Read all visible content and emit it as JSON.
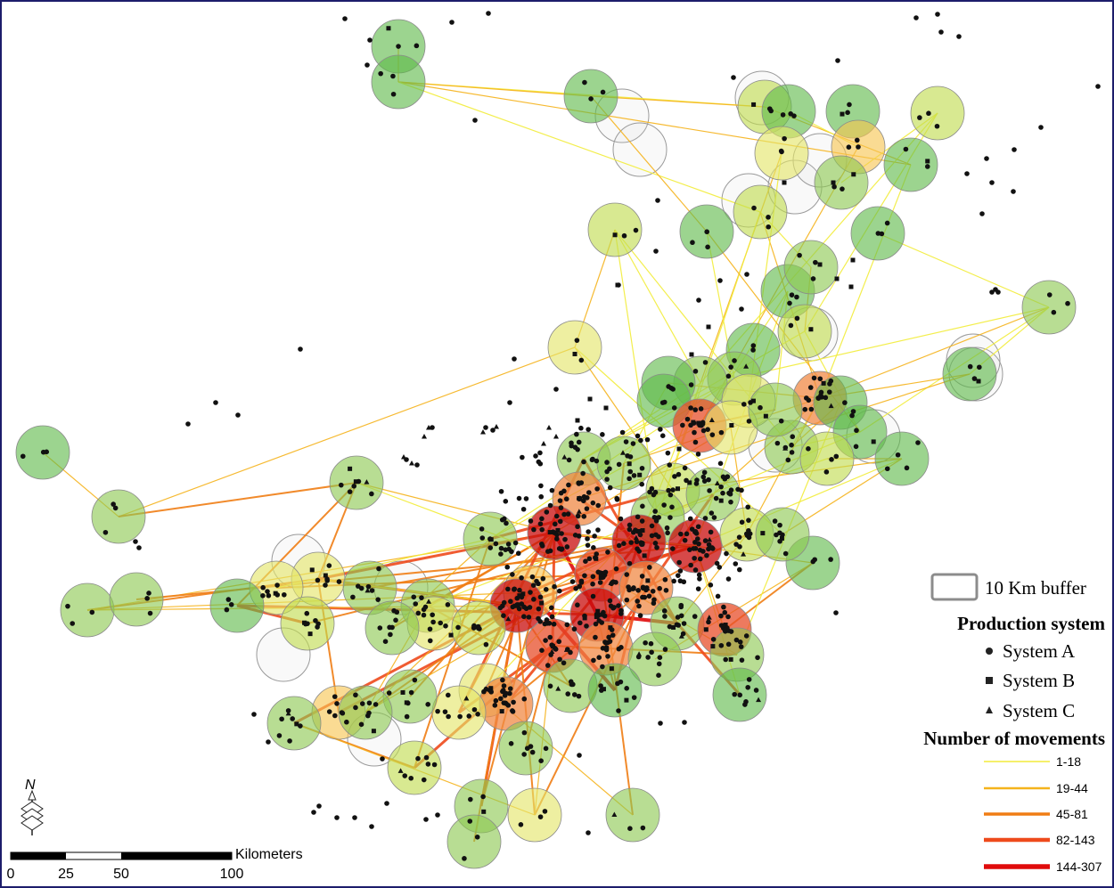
{
  "legend": {
    "buffer_label": "10 Km buffer",
    "production_title": "Production system",
    "systems": [
      {
        "label": "System A",
        "symbol": "circle"
      },
      {
        "label": "System B",
        "symbol": "square"
      },
      {
        "label": "System C",
        "symbol": "triangle"
      }
    ],
    "movements_title": "Number of movements",
    "movement_classes": [
      {
        "label": "1-18",
        "color": "#f2ec3a",
        "width": 1.5
      },
      {
        "label": "19-44",
        "color": "#f5b31c",
        "width": 2.5
      },
      {
        "label": "45-81",
        "color": "#f07d14",
        "width": 3.5
      },
      {
        "label": "82-143",
        "color": "#ee4a1c",
        "width": 4.5
      },
      {
        "label": "144-307",
        "color": "#e00b0b",
        "width": 5.5
      }
    ]
  },
  "scale_bar": {
    "unit": "Kilometers",
    "ticks": [
      "0",
      "25",
      "50",
      "100"
    ]
  },
  "north_arrow": {
    "label": "N"
  },
  "colors": {
    "buffer_fill": [
      "#5fba4a",
      "#8cc850",
      "#c0dc4e",
      "#e3e568",
      "#f7c550",
      "#f08a46",
      "#e74d2a",
      "#c80c0c"
    ],
    "empty_buffer": "#d8d8d8",
    "frame": "#1d1d6b"
  }
}
